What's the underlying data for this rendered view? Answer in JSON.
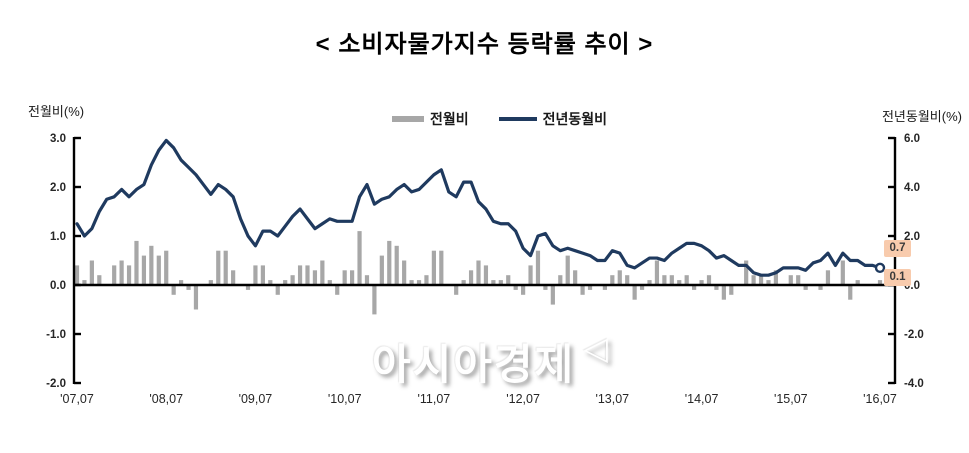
{
  "title": "< 소비자물가지수 등락률 추이 >",
  "legend": [
    {
      "label": "전월비",
      "type": "bar",
      "color": "#a7a7a7"
    },
    {
      "label": "전년동월비",
      "type": "line",
      "color": "#1f3a5f"
    }
  ],
  "left_axis": {
    "title": "전월비(%)",
    "ticks": [
      "3.0",
      "2.0",
      "1.0",
      "0.0",
      "-1.0",
      "-2.0"
    ],
    "max": 3.0,
    "min": -2.0
  },
  "right_axis": {
    "title": "전년동월비(%)",
    "ticks": [
      "6.0",
      "4.0",
      "2.0",
      "0.0",
      "-2.0",
      "-4.0"
    ],
    "max": 6.0,
    "min": -4.0
  },
  "x_labels": [
    "'07,07",
    "'08,07",
    "'09,07",
    "'10,07",
    "'11,07",
    "'12,07",
    "'13,07",
    "'14,07",
    "'15,07",
    "'16,07"
  ],
  "callouts": [
    {
      "value": "0.7",
      "series": "전년동월비"
    },
    {
      "value": "0.1",
      "series": "전월비"
    }
  ],
  "highlight_color": "#f8cbad",
  "watermark": {
    "text": "아시아경제",
    "mark": "◁"
  },
  "chart_data": {
    "type": "bar+line combo",
    "x_start": "2007-07",
    "x_end": "2016-07",
    "frequency": "monthly",
    "x_tick_labels": [
      "'07,07",
      "'08,07",
      "'09,07",
      "'10,07",
      "'11,07",
      "'12,07",
      "'13,07",
      "'14,07",
      "'15,07",
      "'16,07"
    ],
    "left_axis_label": "전월비(%)",
    "left_ylim": [
      -2.0,
      3.0
    ],
    "right_axis_label": "전년동월비(%)",
    "right_ylim": [
      -4.0,
      6.0
    ],
    "grid": false,
    "legend_position": "top-center",
    "series": [
      {
        "name": "전월비",
        "type": "bar",
        "axis": "left",
        "color": "#a7a7a7",
        "values": [
          0.4,
          0.1,
          0.5,
          0.2,
          0.0,
          0.4,
          0.5,
          0.4,
          0.9,
          0.6,
          0.8,
          0.6,
          0.7,
          -0.2,
          0.1,
          -0.1,
          -0.5,
          0.0,
          0.1,
          0.7,
          0.7,
          0.3,
          0.0,
          -0.1,
          0.4,
          0.4,
          0.1,
          -0.2,
          0.1,
          0.2,
          0.4,
          0.4,
          0.3,
          0.5,
          0.1,
          -0.2,
          0.3,
          0.3,
          1.1,
          0.2,
          -0.6,
          0.6,
          0.9,
          0.8,
          0.5,
          0.1,
          0.1,
          0.2,
          0.7,
          0.7,
          0.0,
          -0.2,
          0.1,
          0.3,
          0.5,
          0.4,
          0.1,
          0.1,
          0.2,
          -0.1,
          -0.2,
          0.4,
          0.7,
          -0.1,
          -0.4,
          0.2,
          0.6,
          0.3,
          -0.2,
          -0.1,
          0.0,
          -0.1,
          0.2,
          0.3,
          0.2,
          -0.3,
          -0.1,
          0.1,
          0.5,
          0.2,
          0.2,
          0.1,
          0.2,
          -0.1,
          0.1,
          0.2,
          -0.1,
          -0.3,
          -0.2,
          0.0,
          0.5,
          0.2,
          0.2,
          0.1,
          0.3,
          0.0,
          0.2,
          0.2,
          -0.1,
          0.0,
          -0.1,
          0.3,
          0.0,
          0.5,
          -0.3,
          0.1,
          0.0,
          0.0,
          0.1
        ]
      },
      {
        "name": "전년동월비",
        "type": "line",
        "axis": "right",
        "color": "#1f3a5f",
        "end_marker": "open-circle",
        "values": [
          2.5,
          2.0,
          2.3,
          3.0,
          3.5,
          3.6,
          3.9,
          3.6,
          3.9,
          4.1,
          4.9,
          5.5,
          5.9,
          5.6,
          5.1,
          4.8,
          4.5,
          4.1,
          3.7,
          4.1,
          3.9,
          3.6,
          2.7,
          2.0,
          1.6,
          2.2,
          2.2,
          2.0,
          2.4,
          2.8,
          3.1,
          2.7,
          2.3,
          2.5,
          2.7,
          2.6,
          2.6,
          2.6,
          3.6,
          4.1,
          3.3,
          3.5,
          3.6,
          3.9,
          4.1,
          3.8,
          3.9,
          4.2,
          4.5,
          4.7,
          3.8,
          3.6,
          4.2,
          4.2,
          3.4,
          3.1,
          2.6,
          2.5,
          2.5,
          2.2,
          1.5,
          1.2,
          2.0,
          2.1,
          1.6,
          1.4,
          1.5,
          1.4,
          1.3,
          1.2,
          1.0,
          1.0,
          1.4,
          1.3,
          0.8,
          0.7,
          0.9,
          1.1,
          1.1,
          1.0,
          1.3,
          1.5,
          1.7,
          1.7,
          1.6,
          1.4,
          1.1,
          1.2,
          1.0,
          0.8,
          0.8,
          0.5,
          0.4,
          0.4,
          0.5,
          0.7,
          0.7,
          0.7,
          0.6,
          0.9,
          1.0,
          1.3,
          0.8,
          1.3,
          1.0,
          1.0,
          0.8,
          0.8,
          0.7
        ]
      }
    ],
    "last_value_labels": {
      "전년동월비": 0.7,
      "전월비": 0.1
    }
  }
}
